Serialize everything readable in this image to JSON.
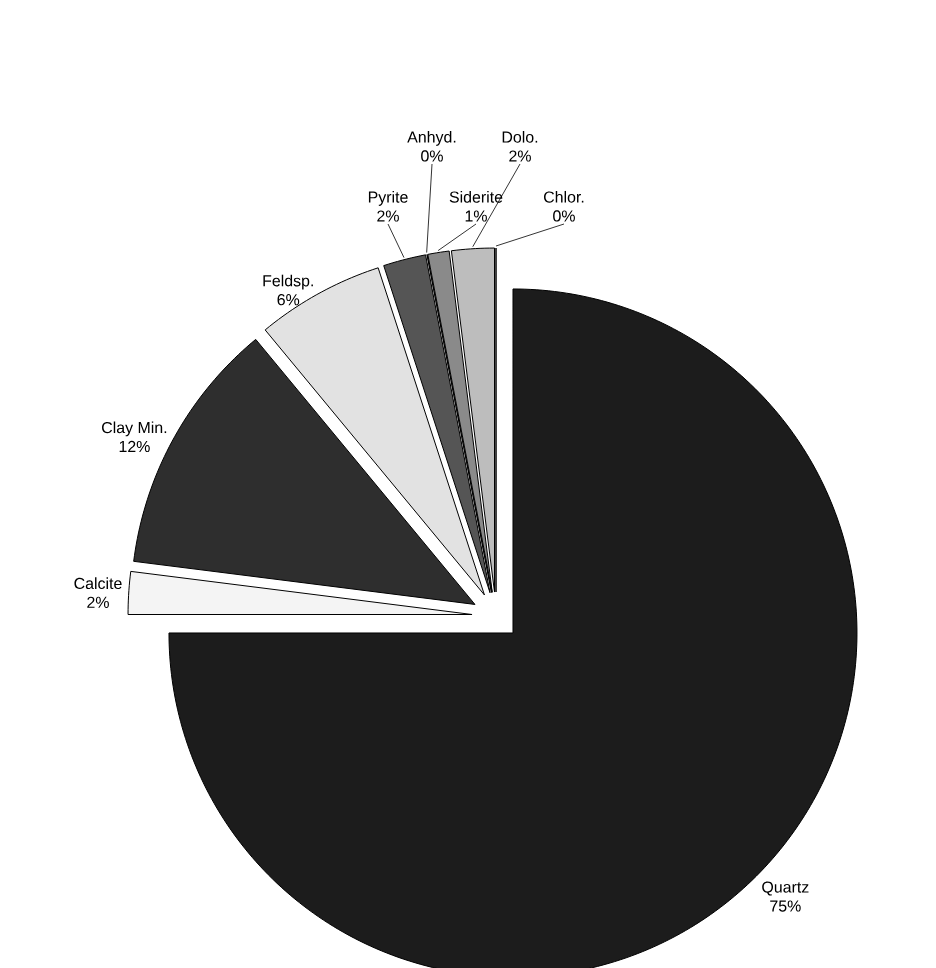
{
  "chart_data": {
    "type": "pie",
    "categories": [
      "Quartz",
      "Calcite",
      "Clay Min.",
      "Feldsp.",
      "Pyrite",
      "Anhyd.",
      "Siderite",
      "Dolo.",
      "Chlor."
    ],
    "values": [
      75,
      2,
      12,
      6,
      2,
      0,
      1,
      2,
      0
    ],
    "value_labels": [
      "75%",
      "2%",
      "12%",
      "6%",
      "2%",
      "0%",
      "1%",
      "2%",
      "0%"
    ],
    "colors": [
      "#1c1c1c",
      "#f4f4f4",
      "#2e2e2e",
      "#e2e2e2",
      "#555555",
      "#ffffff",
      "#8a8a8a",
      "#bdbdbd",
      "#ffffff"
    ],
    "legend": false
  }
}
